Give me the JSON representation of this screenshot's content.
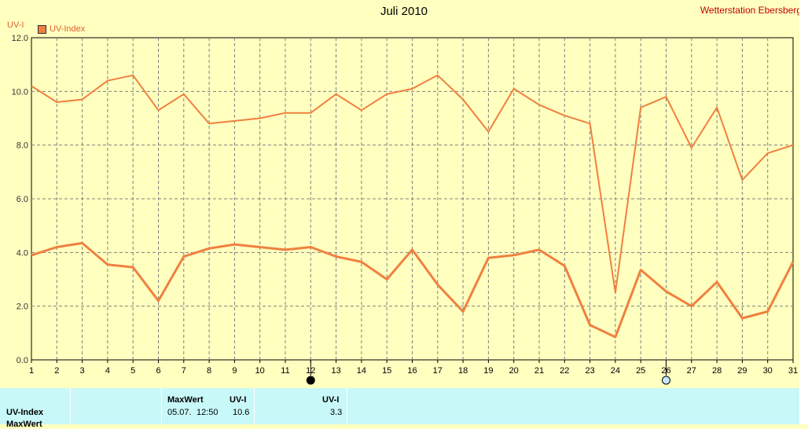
{
  "header": {
    "title": "Juli 2010",
    "station": "Wetterstation Ebersberg",
    "unit_label": "UV-I",
    "legend_label": "UV-Index"
  },
  "colors": {
    "background": "#ffffc0",
    "line": "#f08040",
    "grid": "#808080",
    "panel": "#c8f8f8"
  },
  "chart_data": {
    "type": "line",
    "x": [
      1,
      2,
      3,
      4,
      5,
      6,
      7,
      8,
      9,
      10,
      11,
      12,
      13,
      14,
      15,
      16,
      17,
      18,
      19,
      20,
      21,
      22,
      23,
      24,
      25,
      26,
      27,
      28,
      29,
      30,
      31
    ],
    "ylabel": "UV-I",
    "ylim": [
      0,
      12
    ],
    "yticks": [
      "0.0",
      "2.0",
      "4.0",
      "6.0",
      "8.0",
      "10.0",
      "12.0"
    ],
    "grid": true,
    "legend_position": "top-left",
    "series": [
      {
        "name": "UV-Index",
        "role": "max",
        "values": [
          10.2,
          9.6,
          9.7,
          10.4,
          10.6,
          9.3,
          9.9,
          8.8,
          8.9,
          9.0,
          9.2,
          9.2,
          9.9,
          9.3,
          9.9,
          10.1,
          10.6,
          9.7,
          8.5,
          10.1,
          9.5,
          9.1,
          8.8,
          2.5,
          9.4,
          9.8,
          7.9,
          9.4,
          6.7,
          7.7,
          8.0
        ]
      },
      {
        "name": "UV-Index",
        "role": "mean",
        "values": [
          3.9,
          4.2,
          4.35,
          3.55,
          3.45,
          2.2,
          3.85,
          4.15,
          4.3,
          4.2,
          4.1,
          4.2,
          3.85,
          3.65,
          3.0,
          4.1,
          2.8,
          1.8,
          3.8,
          3.9,
          4.1,
          3.5,
          1.3,
          0.85,
          3.35,
          2.55,
          2.0,
          2.9,
          1.55,
          1.8,
          3.65
        ]
      }
    ],
    "markers": [
      {
        "x": 12,
        "style": "filled"
      },
      {
        "x": 26,
        "style": "hollow"
      }
    ]
  },
  "panel": {
    "row_label": "UV-Index",
    "row_label_cut": "MaxWert",
    "max_header": "MaxWert",
    "unit_header_1": "UV-I",
    "max_date": "05.07.",
    "max_time": "12:50",
    "max_value": "10.6",
    "unit_header_2": "UV-I",
    "second_value": "3.3"
  }
}
